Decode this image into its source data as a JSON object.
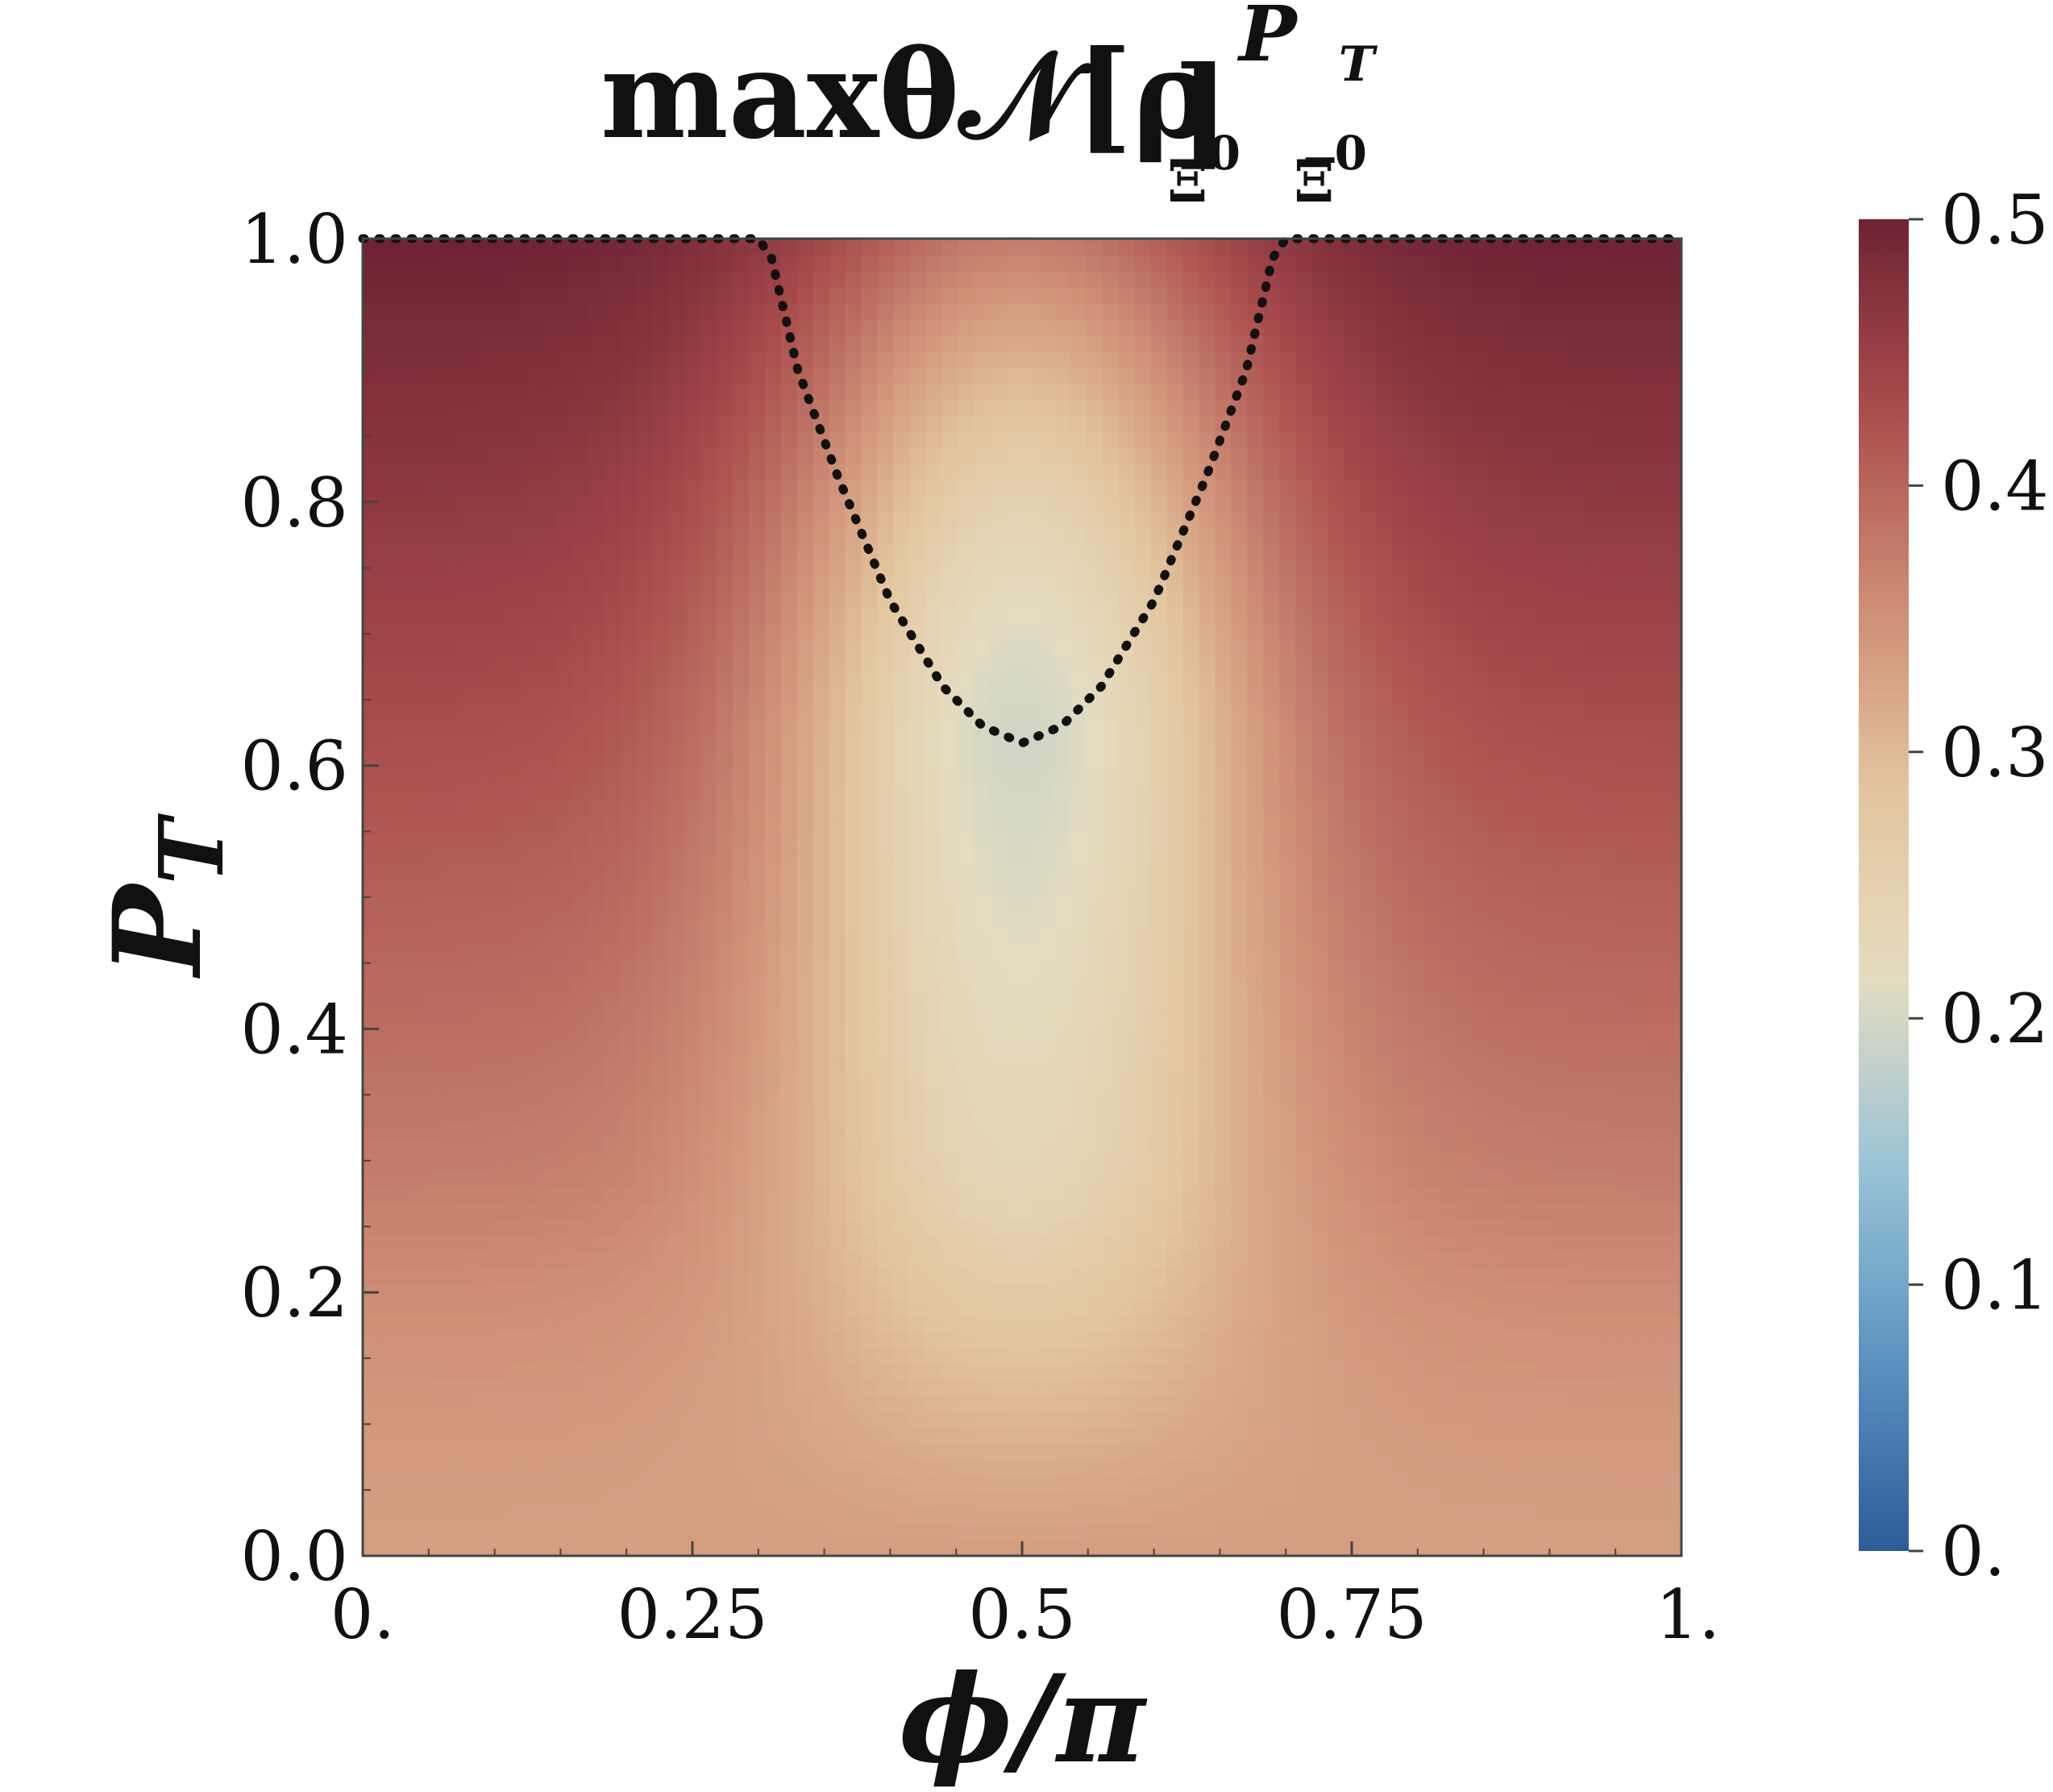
{
  "chart_data": {
    "type": "heatmap",
    "title": "maxθ𝒩[ρ",
    "title_superscript": "P",
    "title_superscript_sub": "T",
    "title_subscript_1": "Ξ",
    "title_subscript_1_sup": "0",
    "title_subscript_2": "Ξ̅",
    "title_subscript_2_sup": "0",
    "title_close": "]",
    "xlabel": "ϕ/π",
    "ylabel_main": "P",
    "ylabel_sub": "T",
    "xlim": [
      0,
      1
    ],
    "ylim": [
      0,
      1
    ],
    "x_ticks": [
      {
        "value": 0,
        "label": "0."
      },
      {
        "value": 0.25,
        "label": "0.25"
      },
      {
        "value": 0.5,
        "label": "0.5"
      },
      {
        "value": 0.75,
        "label": "0.75"
      },
      {
        "value": 1,
        "label": "1."
      }
    ],
    "y_ticks": [
      {
        "value": 0,
        "label": "0.0"
      },
      {
        "value": 0.2,
        "label": "0.2"
      },
      {
        "value": 0.4,
        "label": "0.4"
      },
      {
        "value": 0.6,
        "label": "0.6"
      },
      {
        "value": 0.8,
        "label": "0.8"
      },
      {
        "value": 1.0,
        "label": "1.0"
      }
    ],
    "colorbar": {
      "range": [
        0,
        0.5
      ],
      "ticks": [
        {
          "value": 0,
          "label": "0."
        },
        {
          "value": 0.1,
          "label": "0.1"
        },
        {
          "value": 0.2,
          "label": "0.2"
        },
        {
          "value": 0.3,
          "label": "0.3"
        },
        {
          "value": 0.4,
          "label": "0.4"
        },
        {
          "value": 0.5,
          "label": "0.5"
        }
      ],
      "colors": [
        "#2d5b9a",
        "#5b92c0",
        "#98c3d6",
        "#e4dcc0",
        "#e3c59d",
        "#cd8b73",
        "#a94d4d",
        "#6f2233"
      ]
    },
    "boundary_curve": {
      "style": "dotted",
      "color": "#111111",
      "points": [
        [
          0.0,
          1.0
        ],
        [
          0.3,
          1.0
        ],
        [
          0.31,
          0.985
        ],
        [
          0.33,
          0.9
        ],
        [
          0.36,
          0.82
        ],
        [
          0.4,
          0.725
        ],
        [
          0.44,
          0.66
        ],
        [
          0.47,
          0.63
        ],
        [
          0.5,
          0.617
        ],
        [
          0.53,
          0.63
        ],
        [
          0.56,
          0.66
        ],
        [
          0.6,
          0.725
        ],
        [
          0.64,
          0.82
        ],
        [
          0.67,
          0.9
        ],
        [
          0.69,
          0.985
        ],
        [
          0.7,
          1.0
        ],
        [
          1.0,
          1.0
        ]
      ]
    }
  }
}
